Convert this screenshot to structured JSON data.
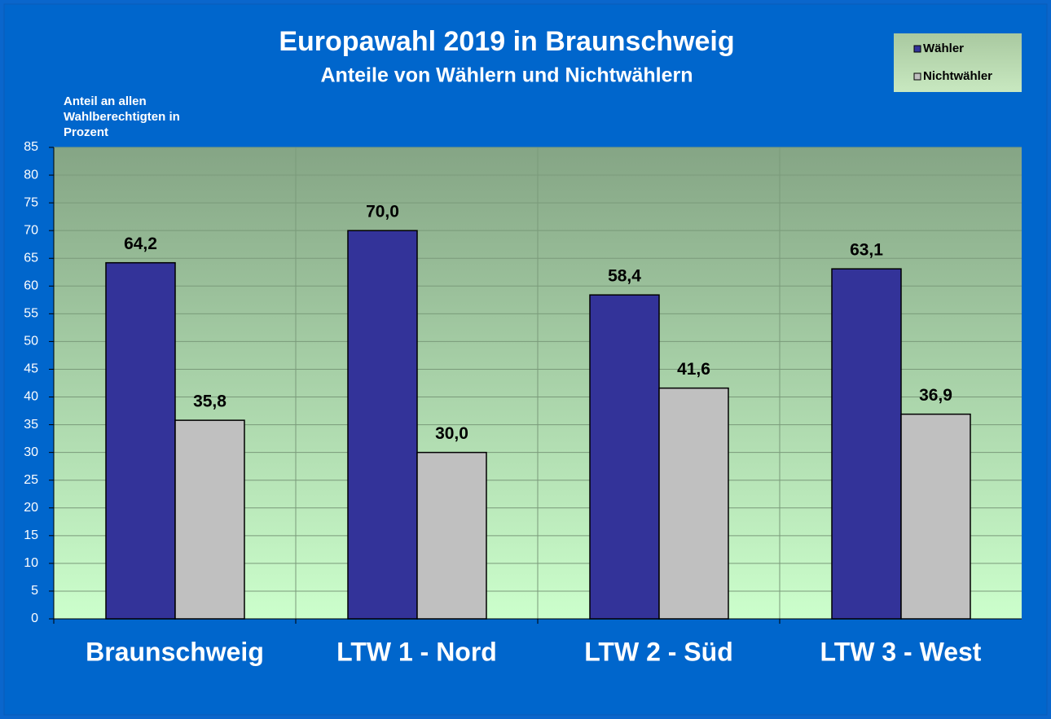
{
  "chart_data": {
    "type": "bar",
    "title": "Europawahl 2019 in Braunschweig",
    "subtitle": "Anteile von Wählern und Nichtwählern",
    "y_label": [
      "Anteil an allen",
      "Wahlberechtigten in",
      "Prozent"
    ],
    "categories": [
      "Braunschweig",
      "LTW 1 - Nord",
      "LTW 2 - Süd",
      "LTW 3 - West"
    ],
    "series": [
      {
        "name": "Wähler",
        "color": "#333399",
        "values": [
          64.2,
          70.0,
          58.4,
          63.1
        ],
        "value_labels": [
          "64,2",
          "70,0",
          "58,4",
          "63,1"
        ]
      },
      {
        "name": "Nichtwähler",
        "color": "#c0c0c0",
        "values": [
          35.8,
          30.0,
          41.6,
          36.9
        ],
        "value_labels": [
          "35,8",
          "30,0",
          "41,6",
          "36,9"
        ]
      }
    ],
    "ylim": [
      0,
      85
    ],
    "yticks": [
      0,
      5,
      10,
      15,
      20,
      25,
      30,
      35,
      40,
      45,
      50,
      55,
      60,
      65,
      70,
      75,
      80,
      85
    ],
    "grid": true,
    "legend": "upper right"
  }
}
